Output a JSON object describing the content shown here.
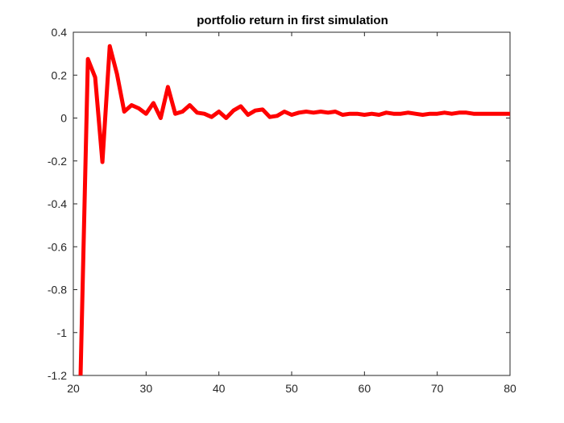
{
  "chart_data": {
    "type": "line",
    "title": "portfolio return in first simulation",
    "xlabel": "",
    "ylabel": "",
    "xlim": [
      20,
      80
    ],
    "ylim": [
      -1.2,
      0.4
    ],
    "xticks": [
      20,
      30,
      40,
      50,
      60,
      70,
      80
    ],
    "xtick_labels": [
      "20",
      "30",
      "40",
      "50",
      "60",
      "70",
      "80"
    ],
    "yticks": [
      0.4,
      0.2,
      0,
      -0.2,
      -0.4,
      -0.6,
      -0.8,
      -1,
      -1.2
    ],
    "ytick_labels": [
      "0.4",
      "0.2",
      "0",
      "-0.2",
      "-0.4",
      "-0.6",
      "-0.8",
      "-1",
      "-1.2"
    ],
    "grid": false,
    "box": true,
    "series": [
      {
        "color": "#ff0000",
        "x": [
          21,
          22,
          23,
          24,
          25,
          26,
          27,
          28,
          29,
          30,
          31,
          32,
          33,
          34,
          35,
          36,
          37,
          38,
          39,
          40,
          41,
          42,
          43,
          44,
          45,
          46,
          47,
          48,
          49,
          50,
          51,
          52,
          53,
          54,
          55,
          56,
          57,
          58,
          59,
          60,
          61,
          62,
          63,
          64,
          65,
          66,
          67,
          68,
          69,
          70,
          71,
          72,
          73,
          74,
          75,
          76,
          77,
          78,
          79,
          80
        ],
        "y": [
          -1.2,
          0.275,
          0.19,
          -0.205,
          0.335,
          0.205,
          0.03,
          0.06,
          0.045,
          0.02,
          0.07,
          0.0,
          0.145,
          0.02,
          0.03,
          0.06,
          0.025,
          0.02,
          0.005,
          0.03,
          0.0,
          0.035,
          0.055,
          0.015,
          0.035,
          0.04,
          0.005,
          0.01,
          0.03,
          0.015,
          0.025,
          0.03,
          0.025,
          0.03,
          0.025,
          0.03,
          0.015,
          0.02,
          0.02,
          0.015,
          0.02,
          0.015,
          0.025,
          0.02,
          0.02,
          0.025,
          0.02,
          0.015,
          0.02,
          0.02,
          0.025,
          0.02,
          0.025,
          0.025,
          0.02,
          0.02,
          0.02,
          0.02,
          0.02,
          0.02
        ]
      }
    ]
  }
}
